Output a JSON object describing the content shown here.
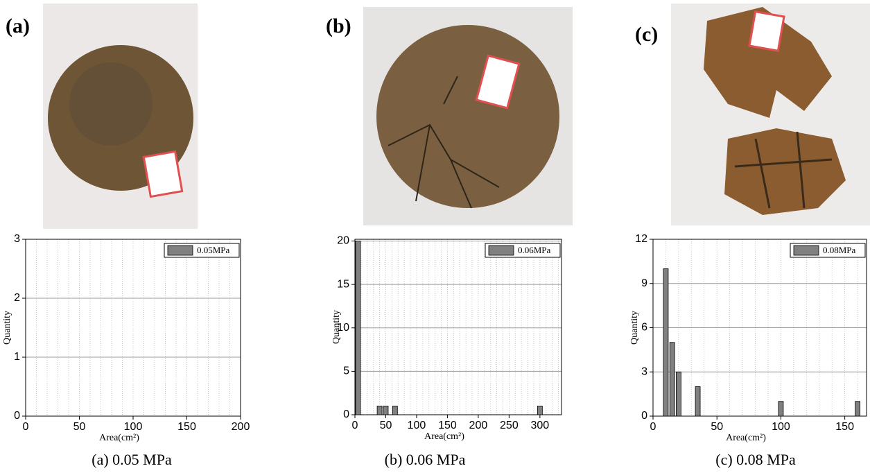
{
  "chart_data": [
    {
      "type": "bar",
      "panel_label": "(a)",
      "caption": "(a) 0.05 MPa",
      "x_label": "Area(cm²)",
      "y_label": "Quantity",
      "x": [],
      "series": [
        {
          "name": "0.05MPa",
          "color": "#808080",
          "values": []
        }
      ],
      "xlim": [
        0,
        200
      ],
      "xticks": [
        0,
        50,
        100,
        150,
        200
      ],
      "ylim": [
        0,
        3
      ],
      "yticks": [
        0,
        1,
        2,
        3
      ],
      "grid": true,
      "legend": "upper right"
    },
    {
      "type": "bar",
      "panel_label": "(b)",
      "caption": "(b) 0.06 MPa",
      "x_label": "Area(cm²)",
      "y_label": "Quantity",
      "x": [
        5,
        40,
        50,
        65,
        300
      ],
      "series": [
        {
          "name": "0.06MPa",
          "color": "#808080",
          "values": [
            20,
            1,
            1,
            1,
            1
          ]
        }
      ],
      "xlim": [
        0,
        335
      ],
      "xticks": [
        0,
        50,
        100,
        150,
        200,
        250,
        300
      ],
      "ylim": [
        0,
        20.2
      ],
      "yticks": [
        0,
        5,
        10,
        15,
        20
      ],
      "grid": true,
      "legend": "upper right"
    },
    {
      "type": "bar",
      "panel_label": "(c)",
      "caption": "(c) 0.08 MPa",
      "x_label": "Area(cm²)",
      "y_label": "Quantity",
      "x": [
        10,
        15,
        20,
        35,
        100,
        160
      ],
      "series": [
        {
          "name": "0.08MPa",
          "color": "#808080",
          "values": [
            10,
            5,
            3,
            2,
            1,
            1
          ]
        }
      ],
      "xlim": [
        0,
        167
      ],
      "xticks": [
        0,
        50,
        100,
        150
      ],
      "ylim": [
        0,
        12
      ],
      "yticks": [
        0,
        3,
        6,
        9,
        12
      ],
      "grid": true,
      "legend": "upper right"
    }
  ]
}
